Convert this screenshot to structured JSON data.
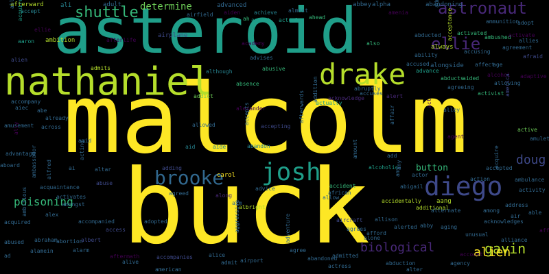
{
  "background": "#000000",
  "palette": {
    "yellow": "#fde725",
    "lime": "#b5de2b",
    "green": "#6ece58",
    "aqua": "#35b779",
    "teal": "#1f9e89",
    "cyan": "#26828e",
    "steel": "#31688e",
    "indigo": "#3e4989",
    "purple": "#482878",
    "violet": "#440154"
  },
  "words": [
    {
      "text": "malcolm",
      "color": "yellow"
    },
    {
      "text": "buck",
      "color": "yellow"
    },
    {
      "text": "asteroid",
      "color": "teal"
    },
    {
      "text": "nathaniel",
      "color": "lime"
    },
    {
      "text": "drake",
      "color": "lime"
    },
    {
      "text": "diego",
      "color": "indigo"
    },
    {
      "text": "josh",
      "color": "teal"
    },
    {
      "text": "brooke",
      "color": "steel"
    },
    {
      "text": "astronaut",
      "color": "purple"
    },
    {
      "text": "ellie",
      "color": "purple"
    },
    {
      "text": "shuttle",
      "color": "aqua"
    },
    {
      "text": "gavin",
      "color": "lime"
    },
    {
      "text": "biological",
      "color": "purple"
    },
    {
      "text": "alien",
      "color": "yellow"
    },
    {
      "text": "doug",
      "color": "indigo"
    },
    {
      "text": "poisoning",
      "color": "aqua"
    },
    {
      "text": "determine",
      "color": "green"
    },
    {
      "text": "button",
      "color": "aqua"
    },
    {
      "text": "adult",
      "color": "steel"
    },
    {
      "text": "academy",
      "color": "violet"
    },
    {
      "text": "advanced",
      "color": "steel"
    },
    {
      "text": "afterward",
      "color": "lime"
    },
    {
      "text": "abbey",
      "color": "steel"
    },
    {
      "text": "alpha",
      "color": "steel"
    },
    {
      "text": "abandoning",
      "color": "steel"
    },
    {
      "text": "ali",
      "color": "cyan"
    },
    {
      "text": "accept",
      "color": "cyan"
    },
    {
      "text": "airfield",
      "color": "steel"
    },
    {
      "text": "achieve",
      "color": "cyan"
    },
    {
      "text": "almost",
      "color": "steel"
    },
    {
      "text": "ahead",
      "color": "aqua"
    },
    {
      "text": "actual",
      "color": "teal"
    },
    {
      "text": "ambush",
      "color": "teal"
    },
    {
      "text": "ah",
      "color": "aqua"
    },
    {
      "text": "aiden",
      "color": "violet"
    },
    {
      "text": "amenia",
      "color": "violet"
    },
    {
      "text": "admitting",
      "color": "steel"
    },
    {
      "text": "adopt",
      "color": "steel"
    },
    {
      "text": "ammunition",
      "color": "steel"
    },
    {
      "text": "ambition",
      "color": "lime"
    },
    {
      "text": "allison",
      "color": "steel"
    },
    {
      "text": "acquires",
      "color": "teal"
    },
    {
      "text": "ellie",
      "color": "violet"
    },
    {
      "text": "aaron",
      "color": "teal"
    },
    {
      "text": "afterlife",
      "color": "violet"
    },
    {
      "text": "airplane",
      "color": "indigo"
    },
    {
      "text": "also",
      "color": "aqua"
    },
    {
      "text": "abducted",
      "color": "steel"
    },
    {
      "text": "always",
      "color": "lime"
    },
    {
      "text": "activated",
      "color": "aqua"
    },
    {
      "text": "ambushed",
      "color": "aqua"
    },
    {
      "text": "activate",
      "color": "violet"
    },
    {
      "text": "allies",
      "color": "steel"
    },
    {
      "text": "agreement",
      "color": "steel"
    },
    {
      "text": "ability",
      "color": "steel"
    },
    {
      "text": "accusing",
      "color": "steel"
    },
    {
      "text": "afraid",
      "color": "indigo"
    },
    {
      "text": "alien",
      "color": "indigo"
    },
    {
      "text": "admits",
      "color": "lime"
    },
    {
      "text": "advises",
      "color": "steel"
    },
    {
      "text": "abusive",
      "color": "aqua"
    },
    {
      "text": "although",
      "color": "cyan"
    },
    {
      "text": "accused",
      "color": "steel"
    },
    {
      "text": "alongside",
      "color": "steel"
    },
    {
      "text": "affect",
      "color": "steel"
    },
    {
      "text": "age",
      "color": "steel"
    },
    {
      "text": "advance",
      "color": "teal"
    },
    {
      "text": "alcohol",
      "color": "violet"
    },
    {
      "text": "abducts",
      "color": "aqua"
    },
    {
      "text": "aided",
      "color": "aqua"
    },
    {
      "text": "adaptive",
      "color": "violet"
    },
    {
      "text": "absence",
      "color": "aqua"
    },
    {
      "text": "addict",
      "color": "green"
    },
    {
      "text": "abruptly",
      "color": "steel"
    },
    {
      "text": "accuses",
      "color": "steel"
    },
    {
      "text": "allowing",
      "color": "steel"
    },
    {
      "text": "agreeing",
      "color": "steel"
    },
    {
      "text": "activist",
      "color": "aqua"
    },
    {
      "text": "acknowledge",
      "color": "purple"
    },
    {
      "text": "actually",
      "color": "teal"
    },
    {
      "text": "alert",
      "color": "purple"
    },
    {
      "text": "accompany",
      "color": "steel"
    },
    {
      "text": "aiec",
      "color": "steel"
    },
    {
      "text": "abe",
      "color": "steel"
    },
    {
      "text": "already",
      "color": "steel"
    },
    {
      "text": "alexander",
      "color": "violet"
    },
    {
      "text": "alley",
      "color": "steel"
    },
    {
      "text": "accepting",
      "color": "indigo"
    },
    {
      "text": "amusement",
      "color": "steel"
    },
    {
      "text": "across",
      "color": "steel"
    },
    {
      "text": "allowed",
      "color": "steel"
    },
    {
      "text": "active",
      "color": "green"
    },
    {
      "text": "amulet",
      "color": "steel"
    },
    {
      "text": "agent",
      "color": "violet"
    },
    {
      "text": "advantage",
      "color": "steel"
    },
    {
      "text": "amid",
      "color": "steel"
    },
    {
      "text": "aid",
      "color": "cyan"
    },
    {
      "text": "aide",
      "color": "cyan"
    },
    {
      "text": "abandon",
      "color": "cyan"
    },
    {
      "text": "aboard",
      "color": "steel"
    },
    {
      "text": "ai",
      "color": "steel"
    },
    {
      "text": "altar",
      "color": "steel"
    },
    {
      "text": "adding",
      "color": "indigo"
    },
    {
      "text": "alcoholic",
      "color": "teal"
    },
    {
      "text": "add",
      "color": "steel"
    },
    {
      "text": "actor",
      "color": "steel"
    },
    {
      "text": "accepted",
      "color": "steel"
    },
    {
      "text": "acquaintance",
      "color": "steel"
    },
    {
      "text": "abuse",
      "color": "indigo"
    },
    {
      "text": "carol",
      "color": "yellow"
    },
    {
      "text": "advice",
      "color": "steel"
    },
    {
      "text": "accident",
      "color": "aqua"
    },
    {
      "text": "african",
      "color": "steel"
    },
    {
      "text": "abigail",
      "color": "steel"
    },
    {
      "text": "action",
      "color": "steel"
    },
    {
      "text": "ambulance",
      "color": "steel"
    },
    {
      "text": "activity",
      "color": "steel"
    },
    {
      "text": "agreed",
      "color": "steel"
    },
    {
      "text": "along",
      "color": "purple"
    },
    {
      "text": "allow",
      "color": "steel"
    },
    {
      "text": "aang",
      "color": "lime"
    },
    {
      "text": "accidentally",
      "color": "lime"
    },
    {
      "text": "address",
      "color": "steel"
    },
    {
      "text": "activates",
      "color": "steel"
    },
    {
      "text": "amongst",
      "color": "steel"
    },
    {
      "text": "alex",
      "color": "steel"
    },
    {
      "text": "aim",
      "color": "steel"
    },
    {
      "text": "albright",
      "color": "lime"
    },
    {
      "text": "additional",
      "color": "lime"
    },
    {
      "text": "alternate",
      "color": "steel"
    },
    {
      "text": "among",
      "color": "steel"
    },
    {
      "text": "air",
      "color": "steel"
    },
    {
      "text": "able",
      "color": "steel"
    },
    {
      "text": "acquired",
      "color": "steel"
    },
    {
      "text": "accompanied",
      "color": "steel"
    },
    {
      "text": "access",
      "color": "indigo"
    },
    {
      "text": "adopted",
      "color": "steel"
    },
    {
      "text": "aircraft",
      "color": "indigo"
    },
    {
      "text": "allison",
      "color": "steel"
    },
    {
      "text": "acknowledges",
      "color": "steel"
    },
    {
      "text": "affection",
      "color": "violet"
    },
    {
      "text": "agrees",
      "color": "steel"
    },
    {
      "text": "alerted",
      "color": "steel"
    },
    {
      "text": "abby",
      "color": "steel"
    },
    {
      "text": "aging",
      "color": "steel"
    },
    {
      "text": "abused",
      "color": "steel"
    },
    {
      "text": "abraham",
      "color": "steel"
    },
    {
      "text": "abortion",
      "color": "steel"
    },
    {
      "text": "albert",
      "color": "indigo"
    },
    {
      "text": "afford",
      "color": "steel"
    },
    {
      "text": "alone",
      "color": "steel"
    },
    {
      "text": "unusual",
      "color": "steel"
    },
    {
      "text": "alliance",
      "color": "steel"
    },
    {
      "text": "alamein",
      "color": "steel"
    },
    {
      "text": "alarm",
      "color": "steel"
    },
    {
      "text": "ad",
      "color": "steel"
    },
    {
      "text": "aftermath",
      "color": "violet"
    },
    {
      "text": "accompanies",
      "color": "indigo"
    },
    {
      "text": "alice",
      "color": "steel"
    },
    {
      "text": "agree",
      "color": "steel"
    },
    {
      "text": "abandoned",
      "color": "steel"
    },
    {
      "text": "admitted",
      "color": "steel"
    },
    {
      "text": "account",
      "color": "violet"
    },
    {
      "text": "admit",
      "color": "steel"
    },
    {
      "text": "airport",
      "color": "steel"
    },
    {
      "text": "abduction",
      "color": "steel"
    },
    {
      "text": "agency",
      "color": "steel"
    },
    {
      "text": "alive",
      "color": "steel"
    },
    {
      "text": "actress",
      "color": "steel"
    },
    {
      "text": "alter",
      "color": "steel"
    },
    {
      "text": "american",
      "color": "steel"
    },
    {
      "text": "america",
      "color": "indigo"
    },
    {
      "text": "ambassador",
      "color": "steel"
    },
    {
      "text": "alfred",
      "color": "steel"
    },
    {
      "text": "ambitious",
      "color": "steel"
    },
    {
      "text": "acting",
      "color": "steel"
    },
    {
      "text": "amount",
      "color": "steel"
    },
    {
      "text": "afterwards",
      "color": "steel"
    },
    {
      "text": "addition",
      "color": "steel"
    },
    {
      "text": "ally",
      "color": "violet"
    },
    {
      "text": "aggressive",
      "color": "steel"
    },
    {
      "text": "adventure",
      "color": "steel"
    },
    {
      "text": "affair",
      "color": "steel"
    },
    {
      "text": "act",
      "color": "violet"
    },
    {
      "text": "any",
      "color": "steel"
    },
    {
      "text": "acceptance",
      "color": "lime"
    },
    {
      "text": "acquire",
      "color": "steel"
    },
    {
      "text": "accepts",
      "color": "steel"
    },
    {
      "text": "amy",
      "color": "steel"
    }
  ]
}
